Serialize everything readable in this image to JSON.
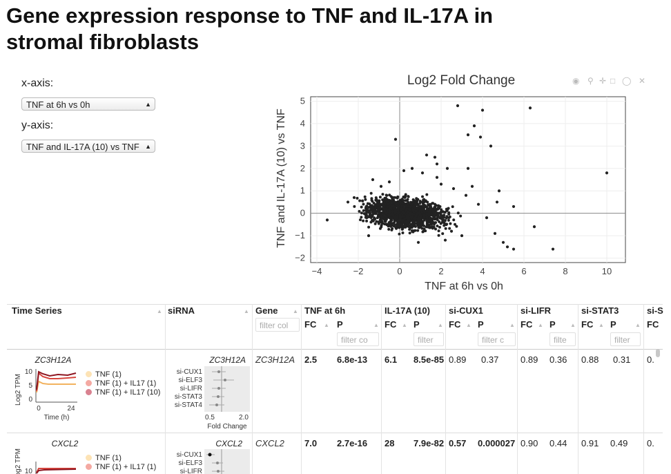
{
  "title": "Gene expression response to TNF and IL-17A in stromal fibroblasts",
  "controls": {
    "x_label": "x-axis:",
    "x_value": "TNF at 6h vs 0h",
    "y_label": "y-axis:",
    "y_value": "TNF and IL-17A (10) vs TNF"
  },
  "modebar_icons": [
    "camera-icon",
    "zoom-icon",
    "pan-icon",
    "box-select-icon",
    "lasso-icon",
    "reset-icon"
  ],
  "chart_data": {
    "type": "scatter",
    "title": "Log2 Fold Change",
    "xlabel": "TNF at 6h vs 0h",
    "ylabel": "TNF and IL-17A (10) vs TNF",
    "xlim": [
      -4.3,
      10.9
    ],
    "ylim": [
      -2.2,
      5.2
    ],
    "xticks": [
      -4,
      -2,
      0,
      2,
      4,
      6,
      8,
      10
    ],
    "yticks": [
      -2,
      -1,
      0,
      1,
      2,
      3,
      4,
      5
    ],
    "grid": true,
    "marker_color": "#222222",
    "cluster": {
      "x_center": 0.3,
      "y_center": 0.0,
      "x_spread": 0.9,
      "y_spread": 0.32,
      "n": 1400
    },
    "points": [
      [
        2.8,
        4.8
      ],
      [
        4.0,
        4.6
      ],
      [
        6.3,
        4.7
      ],
      [
        3.6,
        3.9
      ],
      [
        3.3,
        3.5
      ],
      [
        3.9,
        3.4
      ],
      [
        4.4,
        3.0
      ],
      [
        -0.2,
        3.3
      ],
      [
        10.0,
        1.8
      ],
      [
        3.3,
        2.0
      ],
      [
        2.3,
        2.0
      ],
      [
        1.8,
        2.2
      ],
      [
        1.3,
        2.6
      ],
      [
        1.7,
        2.5
      ],
      [
        0.2,
        1.9
      ],
      [
        0.6,
        2.0
      ],
      [
        -3.5,
        -0.3
      ],
      [
        -2.2,
        0.7
      ],
      [
        -2.5,
        0.5
      ],
      [
        6.5,
        -0.6
      ],
      [
        7.4,
        -1.6
      ],
      [
        5.5,
        -1.6
      ],
      [
        5.2,
        -1.5
      ],
      [
        5.0,
        -1.3
      ],
      [
        4.6,
        -0.9
      ],
      [
        4.7,
        0.5
      ],
      [
        4.8,
        1.0
      ],
      [
        5.5,
        0.3
      ],
      [
        3.2,
        0.8
      ],
      [
        3.0,
        -1.0
      ],
      [
        2.2,
        -1.2
      ],
      [
        2.5,
        -0.8
      ],
      [
        1.8,
        1.6
      ],
      [
        2.0,
        1.3
      ],
      [
        3.5,
        1.2
      ],
      [
        -1.3,
        1.5
      ],
      [
        -0.9,
        1.2
      ],
      [
        -0.5,
        1.4
      ],
      [
        1.1,
        1.8
      ],
      [
        2.6,
        1.1
      ],
      [
        -1.5,
        -1.0
      ],
      [
        0.9,
        -1.3
      ],
      [
        4.2,
        -0.2
      ],
      [
        3.8,
        0.4
      ]
    ]
  },
  "table": {
    "headers": {
      "time_series": "Time Series",
      "sirna": "siRNA",
      "gene": "Gene",
      "tnf6h": "TNF at 6h",
      "il17": "IL-17A (10)",
      "cux1": "si-CUX1",
      "lifr": "si-LIFR",
      "stat3": "si-STAT3",
      "cut": "si-S"
    },
    "subheaders": {
      "fc": "FC",
      "p": "P"
    },
    "filters": {
      "gene": "filter col",
      "tnf_p": "filter co",
      "il17_p": "filter",
      "cux1_p": "filter c",
      "lifr_p": "filte",
      "stat3_p": "filter"
    },
    "rows": [
      {
        "gene": "ZC3H12A",
        "tnf_fc": "2.5",
        "tnf_p": "6.8e-13",
        "il17_fc": "6.1",
        "il17_p": "8.5e-85",
        "cux1_fc": "0.89",
        "cux1_p": "0.37",
        "lifr_fc": "0.89",
        "lifr_p": "0.36",
        "stat3_fc": "0.88",
        "stat3_p": "0.31",
        "cut": "0."
      },
      {
        "gene": "CXCL2",
        "tnf_fc": "7.0",
        "tnf_p": "2.7e-16",
        "il17_fc": "28",
        "il17_p": "7.9e-82",
        "cux1_fc": "0.57",
        "cux1_p": "0.000027",
        "lifr_fc": "0.90",
        "lifr_p": "0.44",
        "stat3_fc": "0.91",
        "stat3_p": "0.49",
        "cut": "0."
      }
    ],
    "timeseries_plot": {
      "title": "ZC3H12A",
      "ylabel": "Log2 TPM",
      "xlabel": "Time (h)",
      "yticks": [
        "10",
        "5",
        "0"
      ],
      "xticks": [
        "0",
        "24"
      ],
      "legend": [
        "TNF (1)",
        "TNF (1) + IL17 (1)",
        "TNF (1) + IL17 (10)"
      ],
      "colors": [
        "#f2b25e",
        "#d7463e",
        "#8e1520"
      ],
      "legend_colors": [
        "#fde3b5",
        "#f4a9a2",
        "#d98290"
      ]
    },
    "sirna_plot": {
      "title": "ZC3H12A",
      "labels": [
        "si-CUX1",
        "si-ELF3",
        "si-LIFR",
        "si-STAT3",
        "si-STAT4"
      ],
      "xticks": [
        "0.5",
        "2.0"
      ],
      "xlabel": "Fold Change"
    },
    "timeseries_plot_2": {
      "title": "CXCL2",
      "ylabel": "Log2 TPM",
      "ytick": "10",
      "legend": [
        "TNF (1)",
        "TNF (1) + IL17 (1)"
      ]
    },
    "sirna_plot_2": {
      "title": "CXCL2",
      "labels": [
        "si-CUX1",
        "si-ELF3",
        "si-LIFR"
      ]
    }
  }
}
